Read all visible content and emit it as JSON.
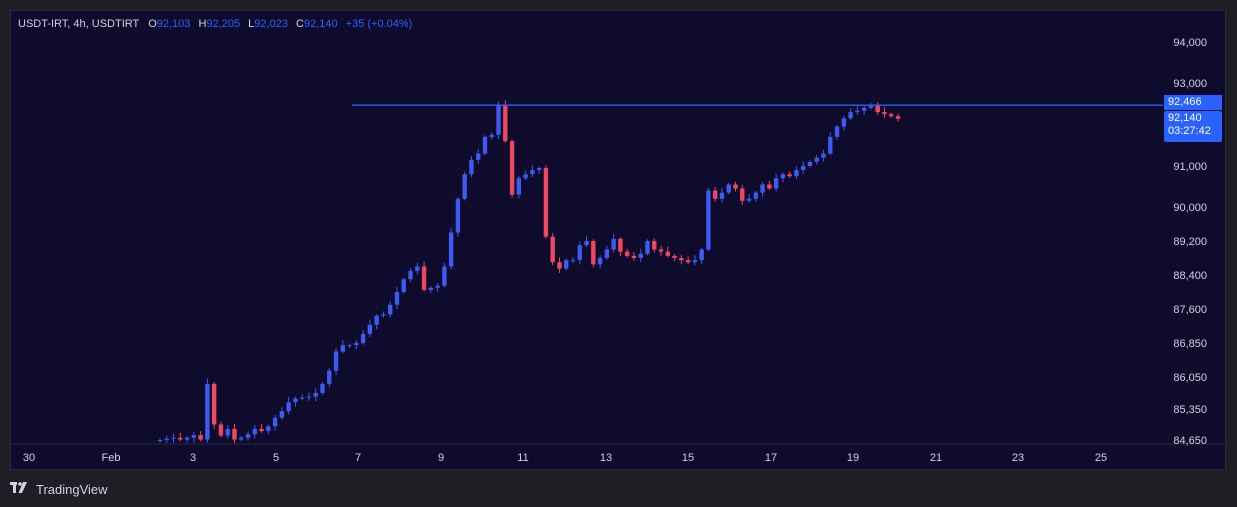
{
  "legend": {
    "symbol": "USDT-IRT, 4h, USDTIRT",
    "o_key": "O",
    "o": "92,103",
    "h_key": "H",
    "h": "92,205",
    "l_key": "L",
    "l": "92,023",
    "c_key": "C",
    "c": "92,140",
    "change": "+35 (+0.04%)"
  },
  "price_labels": {
    "line_price": "92,466",
    "last_price": "92,140",
    "countdown": "03:27:42"
  },
  "branding": {
    "name": "TradingView"
  },
  "colors": {
    "up": "#3d5af1",
    "down": "#ef4760",
    "line": "#2962ff",
    "bg": "#0e0b2d"
  },
  "chart_data": {
    "type": "candlestick",
    "interval": "4h",
    "y_ticks": [
      "94,000",
      "93,000",
      "92,466",
      "91,000",
      "90,000",
      "89,200",
      "88,400",
      "87,600",
      "86,850",
      "86,050",
      "85,350",
      "84,650"
    ],
    "y_tick_values": [
      94000,
      93000,
      91000,
      90000,
      89200,
      88400,
      87600,
      86850,
      86050,
      85350,
      84650
    ],
    "y_tick_text": [
      "94,000",
      "93,000",
      "91,000",
      "90,000",
      "89,200",
      "88,400",
      "87,600",
      "86,850",
      "86,050",
      "85,350",
      "84,650"
    ],
    "x_ticks": [
      "30",
      "Feb",
      "3",
      "5",
      "7",
      "9",
      "11",
      "13",
      "15",
      "17",
      "19",
      "21",
      "23",
      "25"
    ],
    "horizontal_line": 92466,
    "last_close": 92140,
    "candles_close_path": [
      84650,
      84680,
      84700,
      84660,
      84700,
      84760,
      84660,
      85900,
      85000,
      84750,
      84900,
      84660,
      84700,
      84780,
      84900,
      84850,
      84960,
      85150,
      85300,
      85500,
      85580,
      85600,
      85620,
      85700,
      85900,
      86200,
      86650,
      86800,
      86800,
      86850,
      87050,
      87250,
      87450,
      87480,
      87700,
      88000,
      88300,
      88500,
      88600,
      88050,
      88100,
      88150,
      88600,
      89400,
      90200,
      90800,
      91150,
      91300,
      91700,
      91750,
      92466,
      91600,
      90300,
      90700,
      90800,
      90900,
      90950,
      89300,
      88700,
      88550,
      88750,
      88750,
      89100,
      89200,
      88650,
      88800,
      89000,
      89250,
      88950,
      88850,
      88800,
      88900,
      89200,
      89000,
      88950,
      88850,
      88800,
      88750,
      88700,
      88750,
      89000,
      90400,
      90200,
      90350,
      90550,
      90450,
      90150,
      90200,
      90350,
      90550,
      90450,
      90700,
      90800,
      90750,
      90900,
      91000,
      91100,
      91200,
      91300,
      91700,
      91950,
      92150,
      92300,
      92330,
      92400,
      92450,
      92300,
      92250,
      92200,
      92140
    ]
  }
}
